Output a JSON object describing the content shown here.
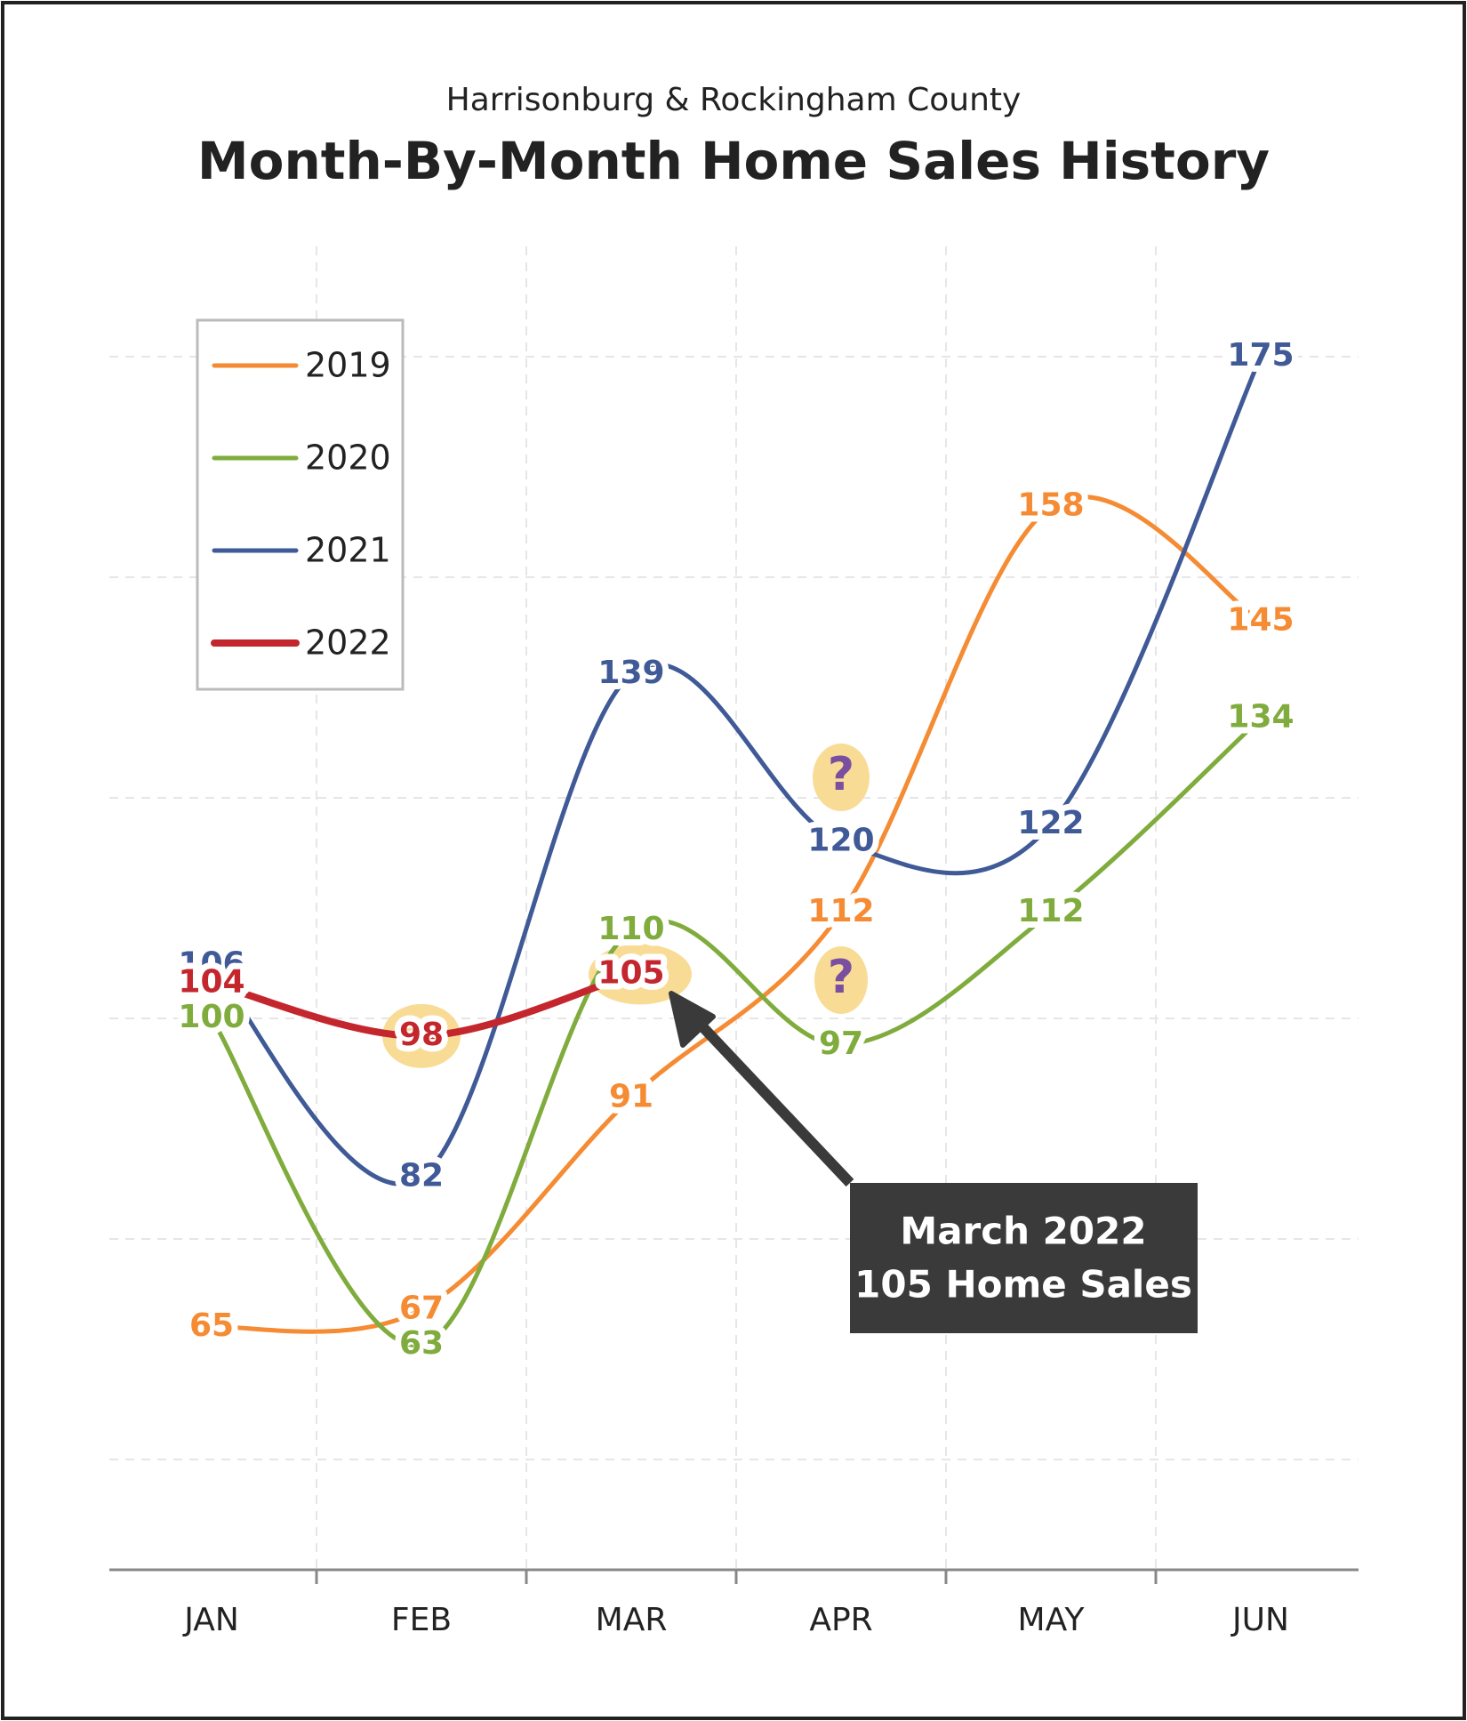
{
  "chart_data": {
    "type": "line",
    "subtitle": "Harrisonburg & Rockingham County",
    "title": "Month-By-Month Home Sales History",
    "categories": [
      "JAN",
      "FEB",
      "MAR",
      "APR",
      "MAY",
      "JUN"
    ],
    "series": [
      {
        "name": "2019",
        "color": "#f58b33",
        "values": [
          65,
          67,
          91,
          112,
          158,
          145
        ]
      },
      {
        "name": "2020",
        "color": "#7fac3c",
        "values": [
          100,
          63,
          110,
          97,
          112,
          134
        ]
      },
      {
        "name": "2021",
        "color": "#3f5a96",
        "values": [
          106,
          82,
          139,
          120,
          122,
          175
        ]
      },
      {
        "name": "2022",
        "color": "#c4262e",
        "values": [
          104,
          98,
          105,
          null,
          null,
          null
        ]
      }
    ],
    "ylim": [
      37.5,
      187.5
    ],
    "yticks": [
      50,
      75,
      100,
      125,
      150,
      175
    ],
    "grid": true,
    "legend": "upper left",
    "annotations": [
      {
        "lines": [
          "March 2022",
          "105 Home Sales"
        ]
      },
      {
        "text": "?"
      },
      {
        "text": "?"
      }
    ]
  }
}
